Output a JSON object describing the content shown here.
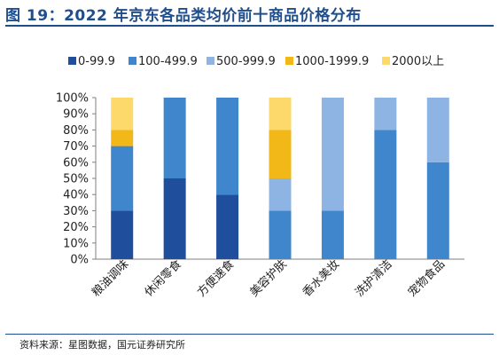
{
  "figure": {
    "title": "图 19：2022 年京东各品类均价前十商品价格分布",
    "source": "资料来源：星图数据，国元证券研究所"
  },
  "chart_data": {
    "type": "bar",
    "stacked": true,
    "title": "",
    "xlabel": "",
    "ylabel": "",
    "ylim": [
      0,
      100
    ],
    "yticks": [
      "0%",
      "10%",
      "20%",
      "30%",
      "40%",
      "50%",
      "60%",
      "70%",
      "80%",
      "90%",
      "100%"
    ],
    "grid": false,
    "legend_position": "top",
    "categories": [
      "粮油调味",
      "休闲零食",
      "方便速食",
      "美容护肤",
      "香水美妆",
      "洗护清洁",
      "宠物食品"
    ],
    "series": [
      {
        "name": "0-99.9",
        "color": "#1f4e9c",
        "values": [
          30,
          50,
          40,
          0,
          0,
          0,
          0
        ]
      },
      {
        "name": "100-499.9",
        "color": "#3f86cc",
        "values": [
          40,
          50,
          60,
          30,
          30,
          80,
          60
        ]
      },
      {
        "name": "500-999.9",
        "color": "#8db4e2",
        "values": [
          0,
          0,
          0,
          20,
          70,
          20,
          40
        ]
      },
      {
        "name": "1000-1999.9",
        "color": "#f2b817",
        "values": [
          10,
          0,
          0,
          30,
          0,
          0,
          0
        ]
      },
      {
        "name": "2000以上",
        "color": "#fdd96b",
        "values": [
          20,
          0,
          0,
          20,
          0,
          0,
          0
        ]
      }
    ]
  }
}
